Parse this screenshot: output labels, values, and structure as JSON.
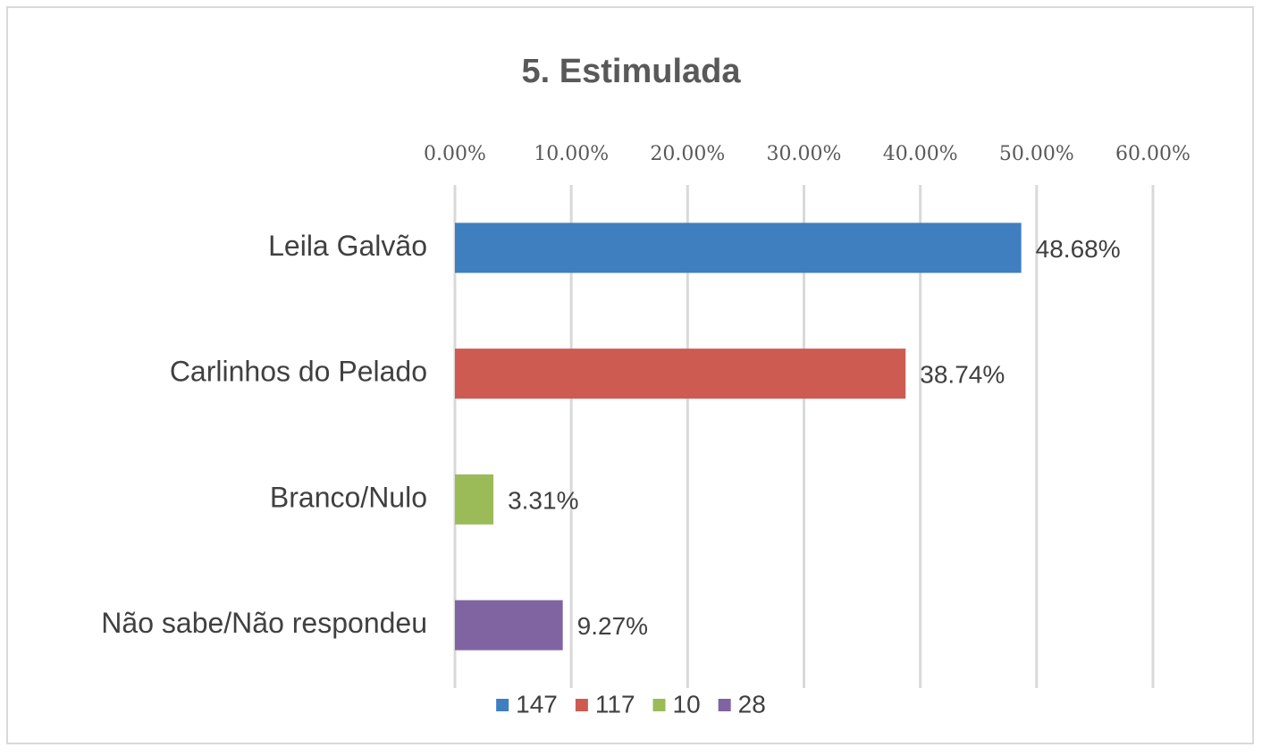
{
  "chart_data": {
    "type": "bar",
    "orientation": "horizontal",
    "title": "5. Estimulada",
    "categories": [
      "Leila Galvão",
      "Carlinhos do Pelado",
      "Branco/Nulo",
      "Não sabe/Não respondeu"
    ],
    "series": [
      {
        "name": "147",
        "color": "#3f7fbf",
        "values": [
          48.68,
          null,
          null,
          null
        ],
        "value_labels": [
          "48.68%",
          null,
          null,
          null
        ]
      },
      {
        "name": "117",
        "color": "#cd5b52",
        "values": [
          null,
          38.74,
          null,
          null
        ],
        "value_labels": [
          null,
          "38.74%",
          null,
          null
        ]
      },
      {
        "name": "10",
        "color": "#9bbb59",
        "values": [
          null,
          null,
          3.31,
          null
        ],
        "value_labels": [
          null,
          null,
          "3.31%",
          null
        ]
      },
      {
        "name": "28",
        "color": "#8064a2",
        "values": [
          null,
          null,
          null,
          9.27
        ],
        "value_labels": [
          null,
          null,
          null,
          "9.27%"
        ]
      }
    ],
    "xlim": [
      0,
      60
    ],
    "xticks": [
      {
        "value": 0,
        "label": "0.00%"
      },
      {
        "value": 10,
        "label": "10.00%"
      },
      {
        "value": 20,
        "label": "20.00%"
      },
      {
        "value": 30,
        "label": "30.00%"
      },
      {
        "value": 40,
        "label": "40.00%"
      },
      {
        "value": 50,
        "label": "50.00%"
      },
      {
        "value": 60,
        "label": "60.00%"
      }
    ],
    "grid": true,
    "legend": "bottom"
  }
}
